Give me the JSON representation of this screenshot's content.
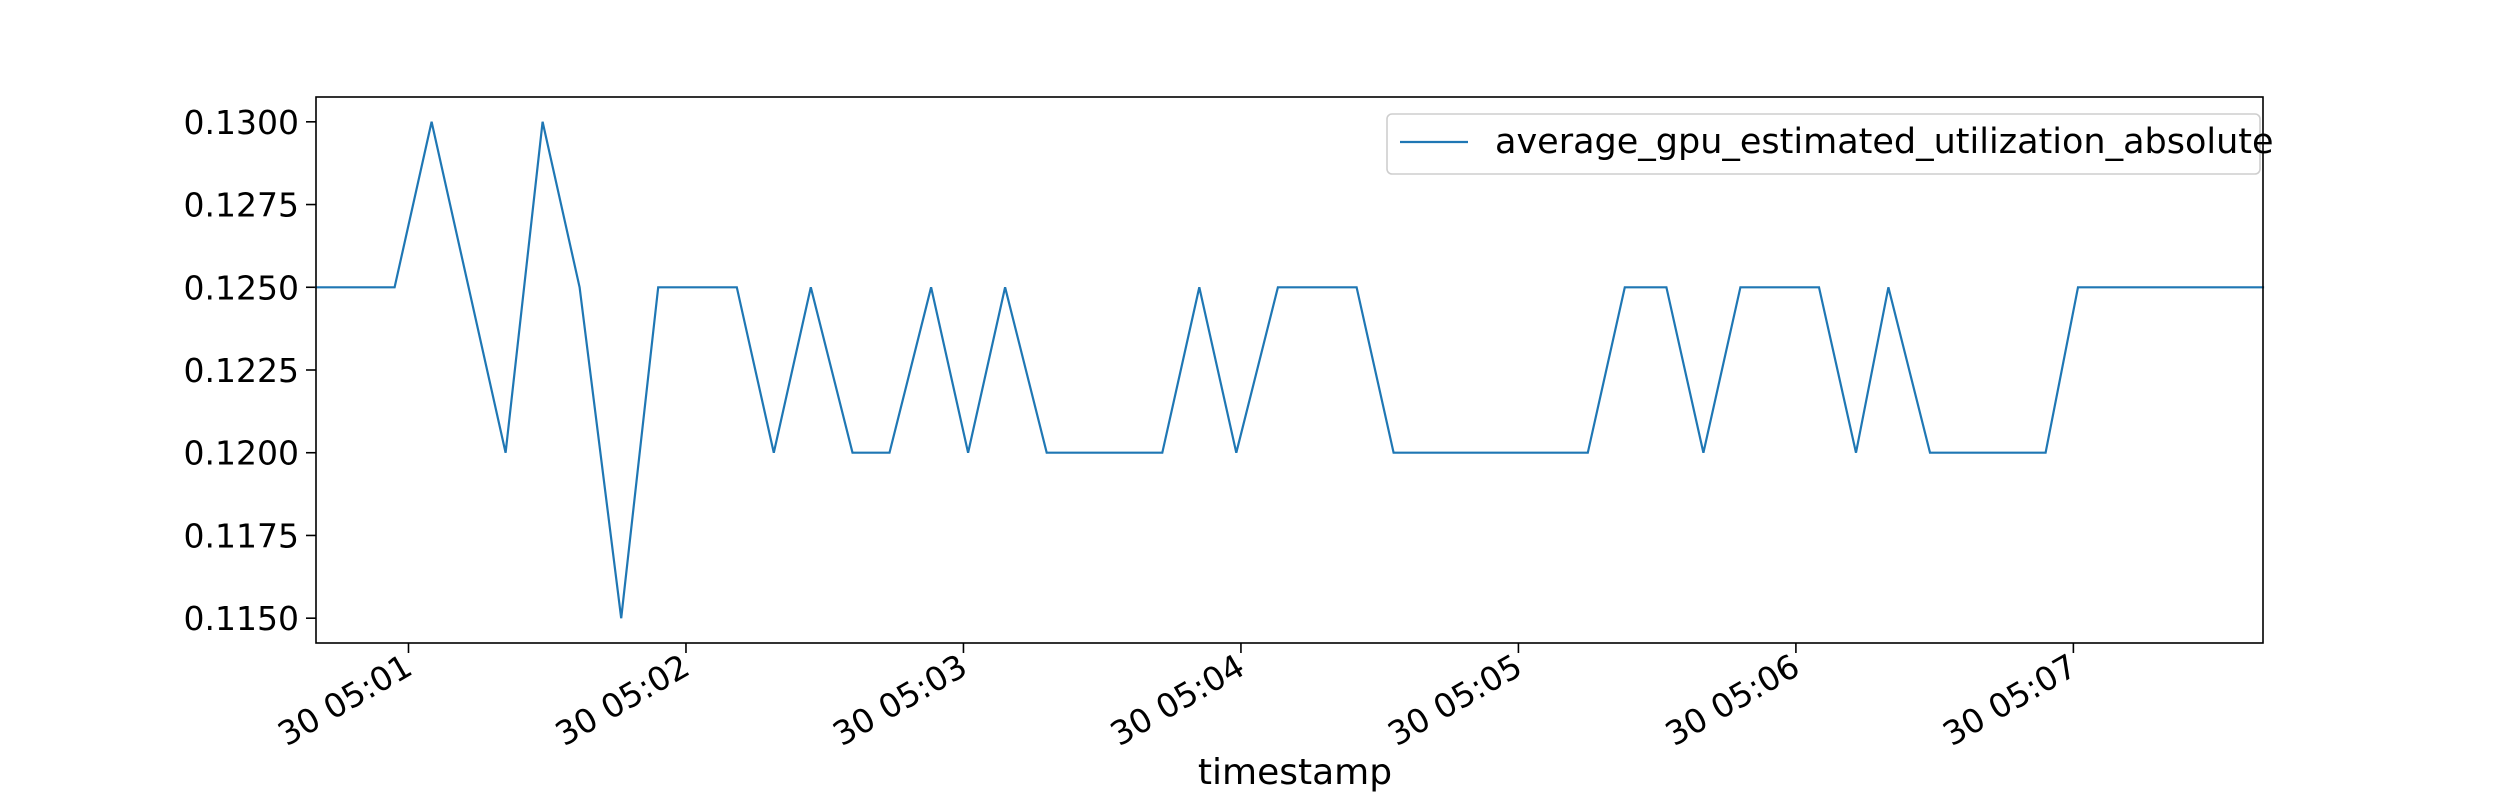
{
  "chart_data": {
    "type": "line",
    "title": "",
    "xlabel": "timestamp",
    "ylabel": "",
    "legend_position": "upper right",
    "grid": false,
    "x_axis_kind": "time",
    "x_range": [
      "05:00:40",
      "05:07:41"
    ],
    "xticks": [
      {
        "label": "30 05:01",
        "time": "05:01:00"
      },
      {
        "label": "30 05:02",
        "time": "05:02:00"
      },
      {
        "label": "30 05:03",
        "time": "05:03:00"
      },
      {
        "label": "30 05:04",
        "time": "05:04:00"
      },
      {
        "label": "30 05:05",
        "time": "05:05:00"
      },
      {
        "label": "30 05:06",
        "time": "05:06:00"
      },
      {
        "label": "30 05:07",
        "time": "05:07:00"
      }
    ],
    "yticks": [
      "0.1150",
      "0.1175",
      "0.1200",
      "0.1225",
      "0.1250",
      "0.1275",
      "0.1300"
    ],
    "ylim": [
      0.11425,
      0.13075
    ],
    "series": [
      {
        "name": "average_gpu_estimated_utilization_absolute",
        "color": "#1f77b4",
        "points": [
          {
            "x": "05:00:40",
            "y": 0.125
          },
          {
            "x": "05:00:57",
            "y": 0.125
          },
          {
            "x": "05:01:05",
            "y": 0.13
          },
          {
            "x": "05:01:13",
            "y": 0.125
          },
          {
            "x": "05:01:21",
            "y": 0.12
          },
          {
            "x": "05:01:29",
            "y": 0.13
          },
          {
            "x": "05:01:37",
            "y": 0.125
          },
          {
            "x": "05:01:46",
            "y": 0.115
          },
          {
            "x": "05:01:54",
            "y": 0.125
          },
          {
            "x": "05:02:11",
            "y": 0.125
          },
          {
            "x": "05:02:19",
            "y": 0.12
          },
          {
            "x": "05:02:27",
            "y": 0.125
          },
          {
            "x": "05:02:36",
            "y": 0.12
          },
          {
            "x": "05:02:44",
            "y": 0.12
          },
          {
            "x": "05:02:53",
            "y": 0.125
          },
          {
            "x": "05:03:01",
            "y": 0.12
          },
          {
            "x": "05:03:09",
            "y": 0.125
          },
          {
            "x": "05:03:18",
            "y": 0.12
          },
          {
            "x": "05:03:43",
            "y": 0.12
          },
          {
            "x": "05:03:51",
            "y": 0.125
          },
          {
            "x": "05:03:59",
            "y": 0.12
          },
          {
            "x": "05:04:08",
            "y": 0.125
          },
          {
            "x": "05:04:25",
            "y": 0.125
          },
          {
            "x": "05:04:33",
            "y": 0.12
          },
          {
            "x": "05:05:15",
            "y": 0.12
          },
          {
            "x": "05:05:23",
            "y": 0.125
          },
          {
            "x": "05:05:32",
            "y": 0.125
          },
          {
            "x": "05:05:40",
            "y": 0.12
          },
          {
            "x": "05:05:48",
            "y": 0.125
          },
          {
            "x": "05:06:05",
            "y": 0.125
          },
          {
            "x": "05:06:13",
            "y": 0.12
          },
          {
            "x": "05:06:20",
            "y": 0.125
          },
          {
            "x": "05:06:29",
            "y": 0.12
          },
          {
            "x": "05:06:54",
            "y": 0.12
          },
          {
            "x": "05:07:01",
            "y": 0.125
          },
          {
            "x": "05:07:41",
            "y": 0.125
          }
        ]
      }
    ]
  }
}
